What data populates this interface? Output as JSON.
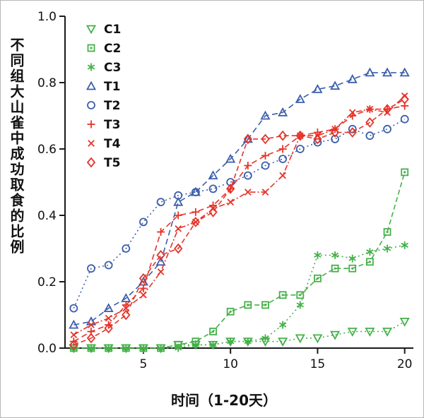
{
  "figure": {
    "y_axis_label": "不同组大山雀中成功取食的比例",
    "x_axis_label": "时间（1-20天）"
  },
  "chart_data": {
    "type": "line",
    "title": "",
    "xlabel": "时间（1-20天）",
    "ylabel": "不同组大山雀中成功取食的比例",
    "x": [
      1,
      2,
      3,
      4,
      5,
      6,
      7,
      8,
      9,
      10,
      11,
      12,
      13,
      14,
      15,
      16,
      17,
      18,
      19,
      20
    ],
    "x_ticks": [
      5,
      10,
      15,
      20
    ],
    "y_ticks": [
      0.0,
      0.2,
      0.4,
      0.6,
      0.8,
      1.0
    ],
    "xlim": [
      0.5,
      20.5
    ],
    "ylim": [
      0,
      1
    ],
    "grid": false,
    "legend_position": "top-left-inside",
    "colors": {
      "control_green": "#45b049",
      "treatment_blue": "#3b5eab",
      "treatment_red": "#e63329"
    },
    "series": [
      {
        "name": "C1",
        "color": "#45b049",
        "marker": "triangle-down",
        "dash": "2,4",
        "values": [
          0,
          0,
          0,
          0,
          0,
          0,
          0.01,
          0.01,
          0.01,
          0.02,
          0.02,
          0.02,
          0.02,
          0.03,
          0.03,
          0.04,
          0.05,
          0.05,
          0.05,
          0.08
        ]
      },
      {
        "name": "C2",
        "color": "#45b049",
        "marker": "square-dot",
        "dash": "7,4",
        "values": [
          0,
          0,
          0,
          0,
          0,
          0,
          0.01,
          0.02,
          0.05,
          0.11,
          0.13,
          0.13,
          0.16,
          0.16,
          0.21,
          0.24,
          0.24,
          0.26,
          0.35,
          0.53
        ]
      },
      {
        "name": "C3",
        "color": "#45b049",
        "marker": "asterisk",
        "dash": "2,4",
        "values": [
          0,
          0,
          0,
          0,
          0,
          0,
          0,
          0.01,
          0.01,
          0.02,
          0.02,
          0.03,
          0.07,
          0.13,
          0.28,
          0.28,
          0.27,
          0.29,
          0.3,
          0.31
        ]
      },
      {
        "name": "T1",
        "color": "#3b5eab",
        "marker": "triangle-up",
        "dash": "8,5",
        "values": [
          0.07,
          0.08,
          0.12,
          0.15,
          0.2,
          0.26,
          0.44,
          0.47,
          0.52,
          0.57,
          0.63,
          0.7,
          0.71,
          0.75,
          0.78,
          0.79,
          0.81,
          0.83,
          0.83,
          0.83
        ]
      },
      {
        "name": "T2",
        "color": "#3b5eab",
        "marker": "circle",
        "dash": "2,4",
        "values": [
          0.12,
          0.24,
          0.25,
          0.3,
          0.38,
          0.44,
          0.46,
          0.47,
          0.48,
          0.5,
          0.52,
          0.55,
          0.57,
          0.6,
          0.62,
          0.63,
          0.66,
          0.64,
          0.66,
          0.69
        ]
      },
      {
        "name": "T3",
        "color": "#e63329",
        "marker": "plus",
        "dash": "8,5",
        "values": [
          0.02,
          0.05,
          0.07,
          0.13,
          0.18,
          0.35,
          0.4,
          0.41,
          0.43,
          0.48,
          0.55,
          0.58,
          0.6,
          0.64,
          0.65,
          0.66,
          0.7,
          0.72,
          0.72,
          0.73
        ]
      },
      {
        "name": "T4",
        "color": "#e63329",
        "marker": "x",
        "dash": "8,3,2,3",
        "values": [
          0.04,
          0.07,
          0.09,
          0.12,
          0.16,
          0.23,
          0.36,
          0.38,
          0.42,
          0.44,
          0.47,
          0.47,
          0.52,
          0.64,
          0.64,
          0.66,
          0.71,
          0.72,
          0.71,
          0.76
        ]
      },
      {
        "name": "T5",
        "color": "#e63329",
        "marker": "diamond",
        "dash": "7,4",
        "values": [
          0.01,
          0.03,
          0.06,
          0.1,
          0.21,
          0.28,
          0.3,
          0.38,
          0.41,
          0.48,
          0.63,
          0.63,
          0.64,
          0.64,
          0.63,
          0.65,
          0.65,
          0.68,
          0.72,
          0.75
        ]
      }
    ]
  }
}
